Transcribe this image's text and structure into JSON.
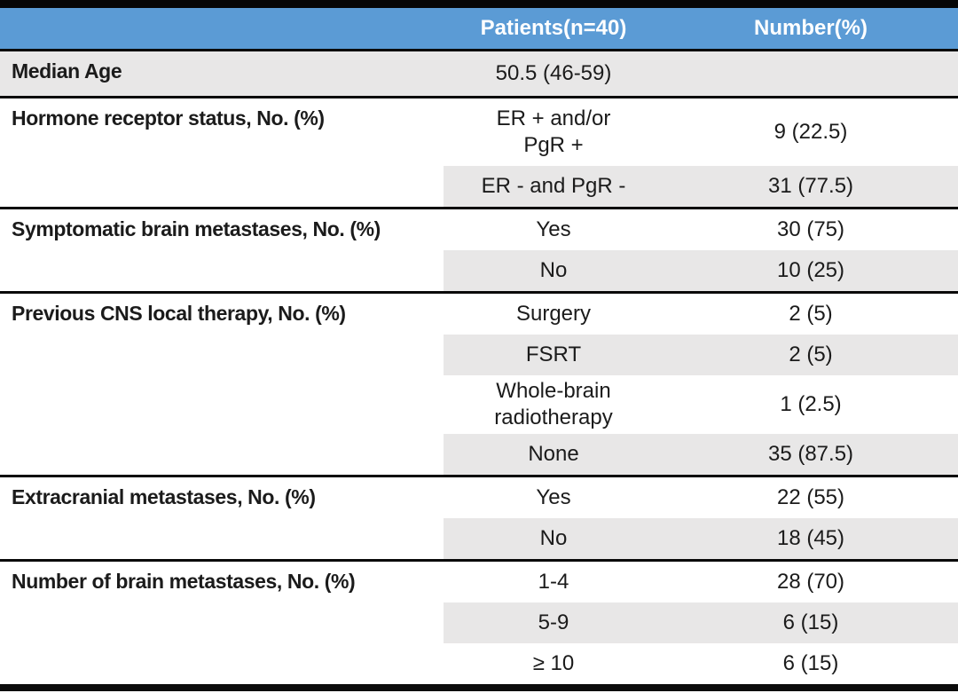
{
  "colors": {
    "header_bg": "#5B9BD5",
    "header_text": "#FFFFFF",
    "band_shade": "#E8E7E7",
    "border": "#0A0A0A",
    "text": "#1B1B1B"
  },
  "chart_data": {
    "type": "table",
    "columns": [
      "",
      "Patients(n=40)",
      "Number(%)"
    ],
    "layout": {
      "banding": "alternate sub-rows shaded light gray in columns 2-3; first row shaded full width",
      "section_dividers": "thick black horizontal rules",
      "header_style": "blue background, white bold text"
    },
    "sections": [
      {
        "label": "Median Age",
        "rows": [
          {
            "value": "50.5 (46-59)",
            "number": "",
            "shaded": true,
            "shade_full_row": true
          }
        ]
      },
      {
        "label": "Hormone receptor status, No. (%)",
        "rows": [
          {
            "value": "ER + and/or\nPgR +",
            "number": "9 (22.5)",
            "shaded": false
          },
          {
            "value": "ER - and PgR -",
            "number": "31 (77.5)",
            "shaded": true
          }
        ]
      },
      {
        "label": "Symptomatic brain metastases, No. (%)",
        "rows": [
          {
            "value": "Yes",
            "number": "30 (75)",
            "shaded": false
          },
          {
            "value": "No",
            "number": "10 (25)",
            "shaded": true
          }
        ]
      },
      {
        "label": "Previous CNS local therapy, No. (%)",
        "rows": [
          {
            "value": "Surgery",
            "number": "2 (5)",
            "shaded": false
          },
          {
            "value": "FSRT",
            "number": "2 (5)",
            "shaded": true
          },
          {
            "value": "Whole-brain\nradiotherapy",
            "number": "1 (2.5)",
            "shaded": false
          },
          {
            "value": "None",
            "number": "35 (87.5)",
            "shaded": true
          }
        ]
      },
      {
        "label": "Extracranial metastases, No. (%)",
        "rows": [
          {
            "value": "Yes",
            "number": "22 (55)",
            "shaded": false
          },
          {
            "value": "No",
            "number": "18 (45)",
            "shaded": true
          }
        ]
      },
      {
        "label": "Number of brain metastases, No. (%)",
        "rows": [
          {
            "value": "1-4",
            "number": "28 (70)",
            "shaded": false
          },
          {
            "value": "5-9",
            "number": "6 (15)",
            "shaded": true
          },
          {
            "value": "≥ 10",
            "number": "6 (15)",
            "shaded": false
          }
        ]
      }
    ]
  }
}
